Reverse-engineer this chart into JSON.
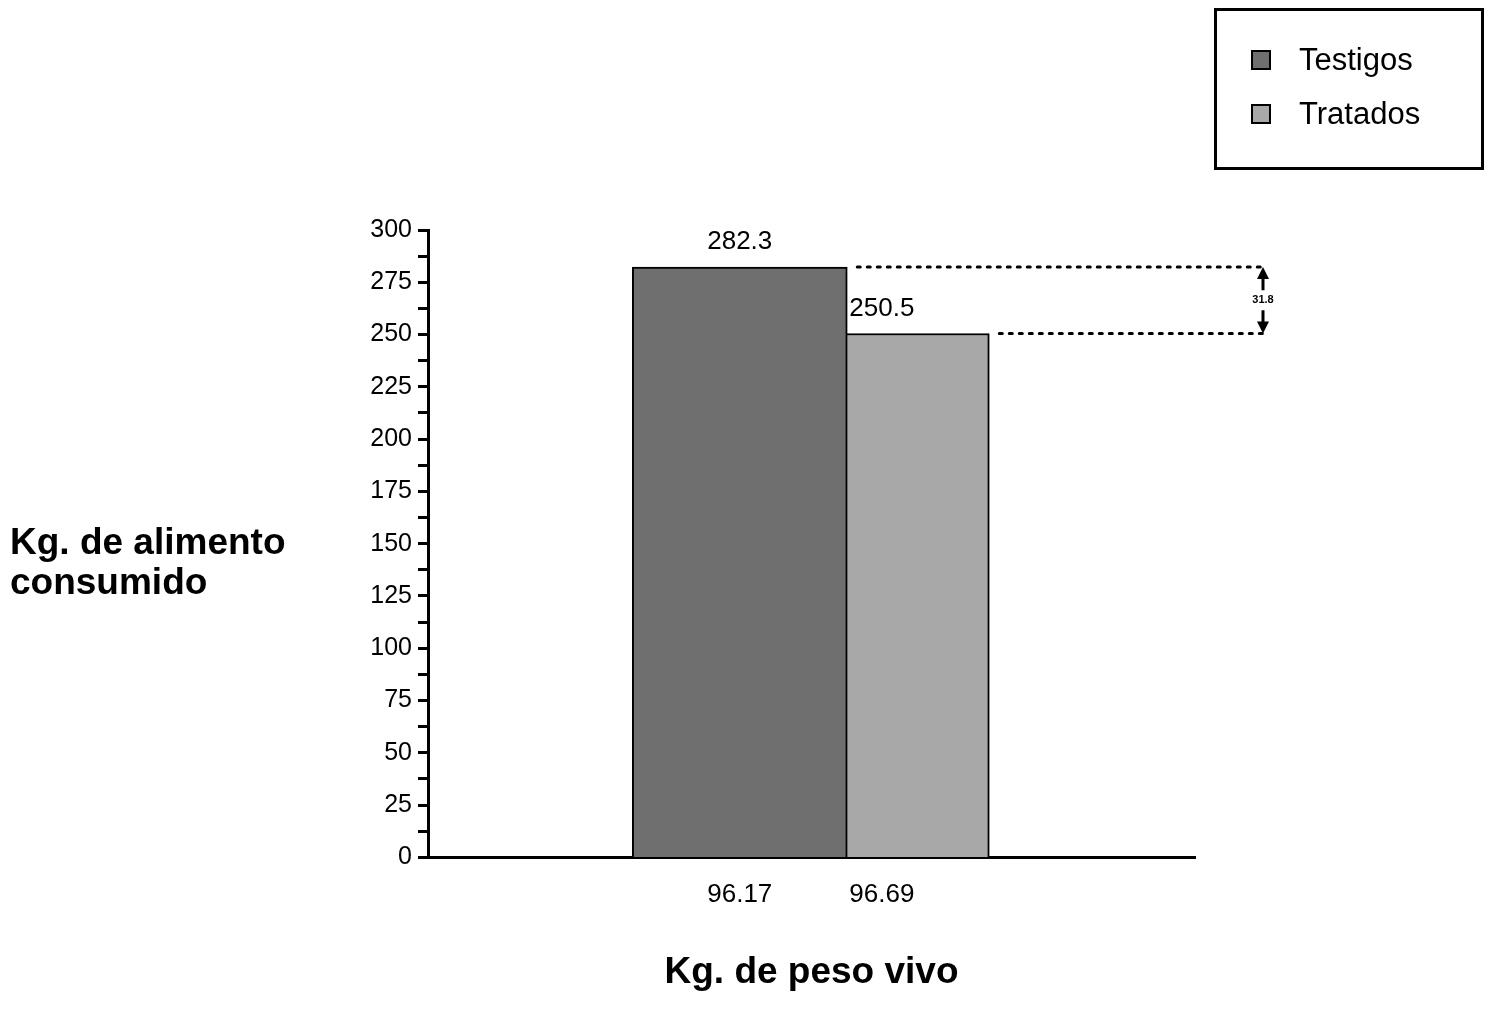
{
  "chart_data": {
    "type": "bar",
    "xlabel": "Kg. de peso vivo",
    "ylabel": "Kg. de alimento consumido",
    "categories": [
      "96.17",
      "96.69"
    ],
    "series": [
      {
        "name": "Testigos",
        "color": "#6f6f6f",
        "values": [
          282.3,
          null
        ]
      },
      {
        "name": "Tratados",
        "color": "#a8a8a8",
        "values": [
          null,
          250.5
        ]
      }
    ],
    "ylim": [
      0,
      300
    ],
    "yticks": [
      0,
      {
        "value": 12.5,
        "label": null
      },
      25,
      {
        "value": 37.5,
        "label": null
      },
      50,
      {
        "value": 62.5,
        "label": null
      },
      75,
      {
        "value": 87.5,
        "label": null
      },
      100,
      {
        "value": 112.5,
        "label": null
      },
      125,
      {
        "value": 137.5,
        "label": null
      },
      150,
      {
        "value": 162.5,
        "label": null
      },
      175,
      {
        "value": 187.5,
        "label": null
      },
      200,
      {
        "value": 212.5,
        "label": null
      },
      225,
      {
        "value": 237.5,
        "label": null
      },
      250,
      {
        "value": 262.5,
        "label": null
      },
      275,
      {
        "value": 287.5,
        "label": null
      },
      300
    ],
    "data_labels": true,
    "grid": false,
    "legend": "top right",
    "ref_lines": [
      {
        "axis": "y",
        "value": 282.3,
        "line_style": "dotted",
        "color": "#000000"
      },
      {
        "axis": "y",
        "value": 250.5,
        "line_style": "dotted",
        "color": "#000000"
      }
    ],
    "annotations": [
      "31.8"
    ]
  }
}
